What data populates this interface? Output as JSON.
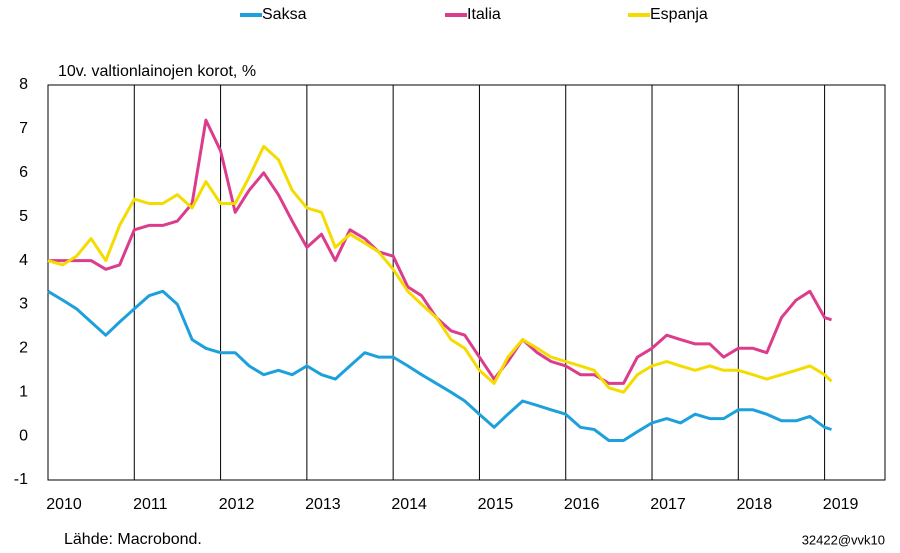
{
  "chart_data": {
    "type": "line",
    "title": "10v. valtionlainojen korot, %",
    "source": "Lähde: Macrobond.",
    "code": "32422@vvk10",
    "legend": "top",
    "grid": true,
    "x": [
      2010.0,
      2010.17,
      2010.33,
      2010.5,
      2010.67,
      2010.83,
      2011.0,
      2011.17,
      2011.33,
      2011.5,
      2011.67,
      2011.83,
      2012.0,
      2012.17,
      2012.33,
      2012.5,
      2012.67,
      2012.83,
      2013.0,
      2013.17,
      2013.33,
      2013.5,
      2013.67,
      2013.83,
      2014.0,
      2014.17,
      2014.33,
      2014.5,
      2014.67,
      2014.83,
      2015.0,
      2015.17,
      2015.33,
      2015.5,
      2015.67,
      2015.83,
      2016.0,
      2016.17,
      2016.33,
      2016.5,
      2016.67,
      2016.83,
      2017.0,
      2017.17,
      2017.33,
      2017.5,
      2017.67,
      2017.83,
      2018.0,
      2018.17,
      2018.33,
      2018.5,
      2018.67,
      2018.83,
      2019.0,
      2019.08
    ],
    "series": [
      {
        "name": "Saksa",
        "color": "#1ea0dc",
        "values": [
          3.3,
          3.1,
          2.9,
          2.6,
          2.3,
          2.6,
          2.9,
          3.2,
          3.3,
          3.0,
          2.2,
          2.0,
          1.9,
          1.9,
          1.6,
          1.4,
          1.5,
          1.4,
          1.6,
          1.4,
          1.3,
          1.6,
          1.9,
          1.8,
          1.8,
          1.6,
          1.4,
          1.2,
          1.0,
          0.8,
          0.5,
          0.2,
          0.5,
          0.8,
          0.7,
          0.6,
          0.5,
          0.2,
          0.15,
          -0.1,
          -0.1,
          0.1,
          0.3,
          0.4,
          0.3,
          0.5,
          0.4,
          0.4,
          0.6,
          0.6,
          0.5,
          0.35,
          0.35,
          0.45,
          0.2,
          0.15
        ]
      },
      {
        "name": "Italia",
        "color": "#dc3c8c",
        "values": [
          4.0,
          4.0,
          4.0,
          4.0,
          3.8,
          3.9,
          4.7,
          4.8,
          4.8,
          4.9,
          5.3,
          7.2,
          6.5,
          5.1,
          5.6,
          6.0,
          5.5,
          4.9,
          4.3,
          4.6,
          4.0,
          4.7,
          4.5,
          4.2,
          4.1,
          3.4,
          3.2,
          2.7,
          2.4,
          2.3,
          1.8,
          1.3,
          1.7,
          2.2,
          1.9,
          1.7,
          1.6,
          1.4,
          1.4,
          1.2,
          1.2,
          1.8,
          2.0,
          2.3,
          2.2,
          2.1,
          2.1,
          1.8,
          2.0,
          2.0,
          1.9,
          2.7,
          3.1,
          3.3,
          2.7,
          2.65
        ]
      },
      {
        "name": "Espanja",
        "color": "#f5dc00",
        "values": [
          4.0,
          3.9,
          4.1,
          4.5,
          4.0,
          4.8,
          5.4,
          5.3,
          5.3,
          5.5,
          5.2,
          5.8,
          5.3,
          5.3,
          5.9,
          6.6,
          6.3,
          5.6,
          5.2,
          5.1,
          4.3,
          4.6,
          4.4,
          4.2,
          3.8,
          3.3,
          3.0,
          2.7,
          2.2,
          2.0,
          1.5,
          1.2,
          1.8,
          2.2,
          2.0,
          1.8,
          1.7,
          1.6,
          1.5,
          1.1,
          1.0,
          1.4,
          1.6,
          1.7,
          1.6,
          1.5,
          1.6,
          1.5,
          1.5,
          1.4,
          1.3,
          1.4,
          1.5,
          1.6,
          1.4,
          1.25
        ]
      }
    ],
    "xlim": [
      2010,
      2019.7
    ],
    "xticks": [
      2010,
      2011,
      2012,
      2013,
      2014,
      2015,
      2016,
      2017,
      2018,
      2019
    ],
    "ylim": [
      -1,
      8
    ],
    "yticks": [
      -1,
      0,
      1,
      2,
      3,
      4,
      5,
      6,
      7,
      8
    ]
  }
}
